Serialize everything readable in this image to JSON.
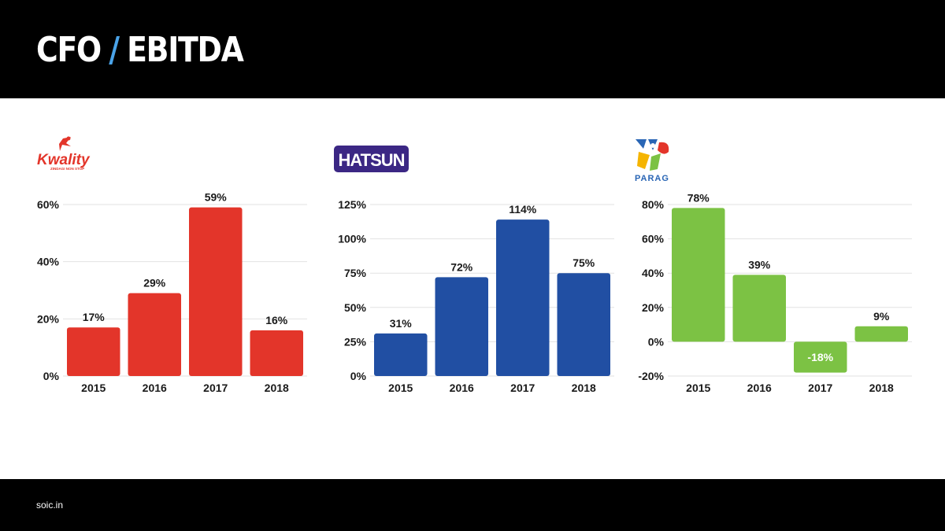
{
  "header": {
    "title_left": "CFO",
    "title_sep": "/",
    "title_right": "EBITDA"
  },
  "footer": {
    "text": "soic.in"
  },
  "colors": {
    "accent": "#4aa3e8",
    "kwality": "#e3352a",
    "hatsun": "#214fa3",
    "parag": "#7cc244"
  },
  "logos": {
    "kwality": {
      "name": "Kwality",
      "tagline": "ZINDAGI NON STOP"
    },
    "hatsun": {
      "name": "HATSUN"
    },
    "parag": {
      "name": "PARAG"
    }
  },
  "chart_data": [
    {
      "type": "bar",
      "categories": [
        "2015",
        "2016",
        "2017",
        "2018"
      ],
      "values": [
        17,
        29,
        59,
        16
      ],
      "value_labels": [
        "17%",
        "29%",
        "59%",
        "16%"
      ],
      "yticks": [
        0,
        20,
        40,
        60
      ],
      "ytick_labels": [
        "0%",
        "20%",
        "40%",
        "60%"
      ],
      "ylim": [
        0,
        60
      ],
      "grid": true,
      "color": "#e3352a"
    },
    {
      "type": "bar",
      "categories": [
        "2015",
        "2016",
        "2017",
        "2018"
      ],
      "values": [
        31,
        72,
        114,
        75
      ],
      "value_labels": [
        "31%",
        "72%",
        "114%",
        "75%"
      ],
      "yticks": [
        0,
        25,
        50,
        75,
        100,
        125
      ],
      "ytick_labels": [
        "0%",
        "25%",
        "50%",
        "75%",
        "100%",
        "125%"
      ],
      "ylim": [
        0,
        125
      ],
      "grid": true,
      "color": "#214fa3"
    },
    {
      "type": "bar",
      "categories": [
        "2015",
        "2016",
        "2017",
        "2018"
      ],
      "values": [
        78,
        39,
        -18,
        9
      ],
      "value_labels": [
        "78%",
        "39%",
        "-18%",
        "9%"
      ],
      "yticks": [
        -20,
        0,
        20,
        40,
        60,
        80
      ],
      "ytick_labels": [
        "-20%",
        "0%",
        "20%",
        "40%",
        "60%",
        "80%"
      ],
      "ylim": [
        -20,
        80
      ],
      "grid": true,
      "color": "#7cc244"
    }
  ]
}
